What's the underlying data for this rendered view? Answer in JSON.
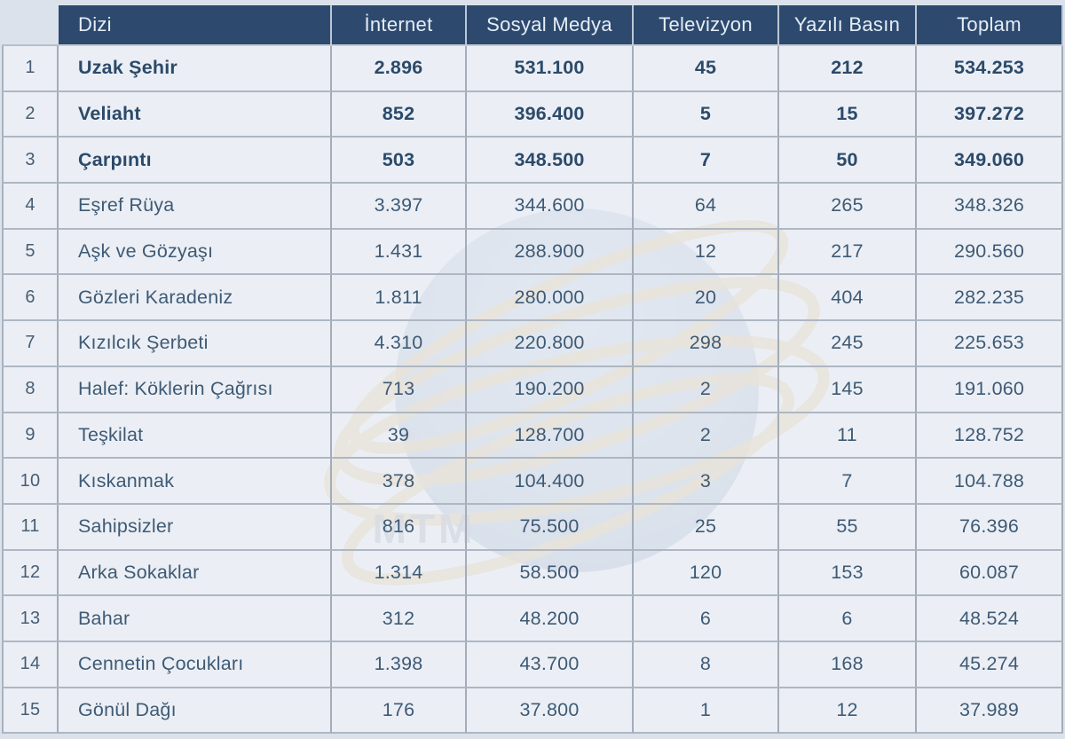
{
  "watermark": {
    "text": "MTM",
    "ring_color": "#d2a55c",
    "globe_color_top": "#9db2cc",
    "globe_color_bottom": "#54729a",
    "text_color": "#76828f"
  },
  "colors": {
    "header_bg": "#2d4a6e",
    "header_text": "#e6edf6",
    "row_bg": "#e9edf4",
    "page_bg": "#dce2eb",
    "body_text": "#3f5a75",
    "bold_text": "#2c4a6a",
    "border": "#a3acb9"
  },
  "table": {
    "rank_header": "",
    "columns": [
      {
        "key": "dizi",
        "label": "Dizi"
      },
      {
        "key": "internet",
        "label": "İnternet"
      },
      {
        "key": "sosyal_medya",
        "label": "Sosyal Medya"
      },
      {
        "key": "televizyon",
        "label": "Televizyon"
      },
      {
        "key": "yazili_basin",
        "label": "Yazılı Basın"
      },
      {
        "key": "toplam",
        "label": "Toplam"
      }
    ],
    "rows": [
      {
        "rank": "1",
        "dizi": "Uzak Şehir",
        "internet": "2.896",
        "sosyal_medya": "531.100",
        "televizyon": "45",
        "yazili_basin": "212",
        "toplam": "534.253",
        "bold": true
      },
      {
        "rank": "2",
        "dizi": "Veliaht",
        "internet": "852",
        "sosyal_medya": "396.400",
        "televizyon": "5",
        "yazili_basin": "15",
        "toplam": "397.272",
        "bold": true
      },
      {
        "rank": "3",
        "dizi": "Çarpıntı",
        "internet": "503",
        "sosyal_medya": "348.500",
        "televizyon": "7",
        "yazili_basin": "50",
        "toplam": "349.060",
        "bold": true
      },
      {
        "rank": "4",
        "dizi": "Eşref Rüya",
        "internet": "3.397",
        "sosyal_medya": "344.600",
        "televizyon": "64",
        "yazili_basin": "265",
        "toplam": "348.326",
        "bold": false
      },
      {
        "rank": "5",
        "dizi": "Aşk ve Gözyaşı",
        "internet": "1.431",
        "sosyal_medya": "288.900",
        "televizyon": "12",
        "yazili_basin": "217",
        "toplam": "290.560",
        "bold": false
      },
      {
        "rank": "6",
        "dizi": "Gözleri Karadeniz",
        "internet": "1.811",
        "sosyal_medya": "280.000",
        "televizyon": "20",
        "yazili_basin": "404",
        "toplam": "282.235",
        "bold": false
      },
      {
        "rank": "7",
        "dizi": "Kızılcık Şerbeti",
        "internet": "4.310",
        "sosyal_medya": "220.800",
        "televizyon": "298",
        "yazili_basin": "245",
        "toplam": "225.653",
        "bold": false
      },
      {
        "rank": "8",
        "dizi": "Halef: Köklerin Çağrısı",
        "internet": "713",
        "sosyal_medya": "190.200",
        "televizyon": "2",
        "yazili_basin": "145",
        "toplam": "191.060",
        "bold": false
      },
      {
        "rank": "9",
        "dizi": "Teşkilat",
        "internet": "39",
        "sosyal_medya": "128.700",
        "televizyon": "2",
        "yazili_basin": "11",
        "toplam": "128.752",
        "bold": false
      },
      {
        "rank": "10",
        "dizi": "Kıskanmak",
        "internet": "378",
        "sosyal_medya": "104.400",
        "televizyon": "3",
        "yazili_basin": "7",
        "toplam": "104.788",
        "bold": false
      },
      {
        "rank": "11",
        "dizi": "Sahipsizler",
        "internet": "816",
        "sosyal_medya": "75.500",
        "televizyon": "25",
        "yazili_basin": "55",
        "toplam": "76.396",
        "bold": false
      },
      {
        "rank": "12",
        "dizi": "Arka Sokaklar",
        "internet": "1.314",
        "sosyal_medya": "58.500",
        "televizyon": "120",
        "yazili_basin": "153",
        "toplam": "60.087",
        "bold": false
      },
      {
        "rank": "13",
        "dizi": "Bahar",
        "internet": "312",
        "sosyal_medya": "48.200",
        "televizyon": "6",
        "yazili_basin": "6",
        "toplam": "48.524",
        "bold": false
      },
      {
        "rank": "14",
        "dizi": "Cennetin Çocukları",
        "internet": "1.398",
        "sosyal_medya": "43.700",
        "televizyon": "8",
        "yazili_basin": "168",
        "toplam": "45.274",
        "bold": false
      },
      {
        "rank": "15",
        "dizi": "Gönül Dağı",
        "internet": "176",
        "sosyal_medya": "37.800",
        "televizyon": "1",
        "yazili_basin": "12",
        "toplam": "37.989",
        "bold": false
      }
    ]
  },
  "chart_data": {
    "type": "table",
    "title": "",
    "columns": [
      "#",
      "Dizi",
      "İnternet",
      "Sosyal Medya",
      "Televizyon",
      "Yazılı Basın",
      "Toplam"
    ],
    "rows": [
      [
        1,
        "Uzak Şehir",
        2896,
        531100,
        45,
        212,
        534253
      ],
      [
        2,
        "Veliaht",
        852,
        396400,
        5,
        15,
        397272
      ],
      [
        3,
        "Çarpıntı",
        503,
        348500,
        7,
        50,
        349060
      ],
      [
        4,
        "Eşref Rüya",
        3397,
        344600,
        64,
        265,
        348326
      ],
      [
        5,
        "Aşk ve Gözyaşı",
        1431,
        288900,
        12,
        217,
        290560
      ],
      [
        6,
        "Gözleri Karadeniz",
        1811,
        280000,
        20,
        404,
        282235
      ],
      [
        7,
        "Kızılcık Şerbeti",
        4310,
        220800,
        298,
        245,
        225653
      ],
      [
        8,
        "Halef: Köklerin Çağrısı",
        713,
        190200,
        2,
        145,
        191060
      ],
      [
        9,
        "Teşkilat",
        39,
        128700,
        2,
        11,
        128752
      ],
      [
        10,
        "Kıskanmak",
        378,
        104400,
        3,
        7,
        104788
      ],
      [
        11,
        "Sahipsizler",
        816,
        75500,
        25,
        55,
        76396
      ],
      [
        12,
        "Arka Sokaklar",
        1314,
        58500,
        120,
        153,
        60087
      ],
      [
        13,
        "Bahar",
        312,
        48200,
        6,
        6,
        48524
      ],
      [
        14,
        "Cennetin Çocukları",
        1398,
        43700,
        8,
        168,
        45274
      ],
      [
        15,
        "Gönül Dağı",
        176,
        37800,
        1,
        12,
        37989
      ]
    ],
    "number_format": "tr-TR ('.' thousands separator)",
    "bold_rows": [
      1,
      2,
      3
    ],
    "sort": "Toplam descending"
  }
}
